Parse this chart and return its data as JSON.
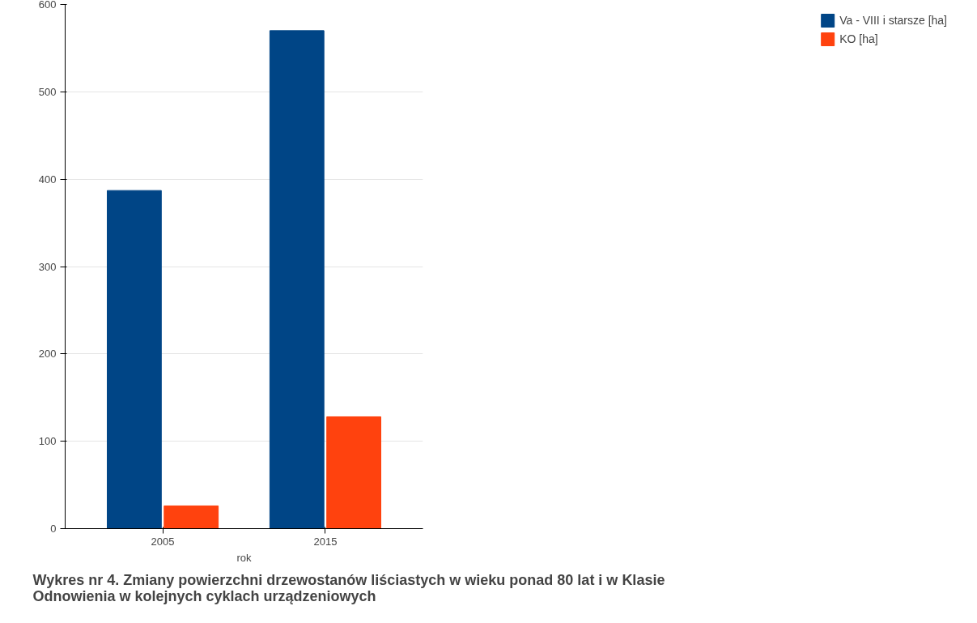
{
  "chart_data": {
    "type": "bar",
    "title": "Wykres nr 4. Zmiany  powierzchni drzewostanów liściastych w wieku ponad 80 lat i w Klasie Odnowienia w kolejnych cyklach urządzeniowych",
    "xlabel": "rok",
    "categories": [
      "2005",
      "2015"
    ],
    "series": [
      {
        "name": "Va - VIII i starsze [ha]",
        "color": "#004586",
        "values": [
          387,
          570
        ]
      },
      {
        "name": "KO [ha]",
        "color": "#ff420e",
        "values": [
          26,
          128
        ]
      }
    ],
    "ylim": [
      0,
      600
    ],
    "yticks": [
      0,
      100,
      200,
      300,
      400,
      500,
      600
    ],
    "grid": "y",
    "legend": "right"
  }
}
